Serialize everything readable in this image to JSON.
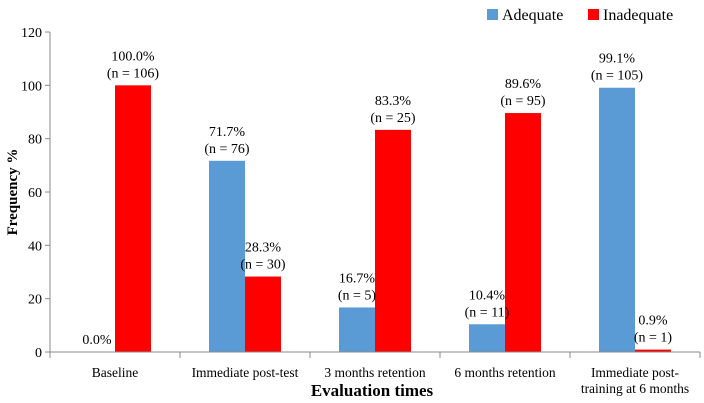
{
  "chart_data": {
    "type": "bar",
    "xlabel": "Evaluation times",
    "ylabel": "Frequency %",
    "ylim": [
      0,
      120
    ],
    "yticks": [
      0,
      20,
      40,
      60,
      80,
      100,
      120
    ],
    "grid": false,
    "legend_position": "top-right",
    "categories": [
      [
        "Baseline"
      ],
      [
        "Immediate post-test"
      ],
      [
        "3 months retention"
      ],
      [
        "6 months retention"
      ],
      [
        "Immediate post-",
        "training at 6 months"
      ]
    ],
    "series": [
      {
        "name": "Adequate",
        "color": "#5B9BD5",
        "values": [
          0.0,
          71.7,
          16.7,
          10.4,
          99.1
        ],
        "labels": [
          [
            "0.0%"
          ],
          [
            "71.7%",
            "(n = 76)"
          ],
          [
            "16.7%",
            "(n = 5)"
          ],
          [
            "10.4%",
            "(n = 11)"
          ],
          [
            "99.1%",
            "(n = 105)"
          ]
        ]
      },
      {
        "name": "Inadequate",
        "color": "#FF0000",
        "values": [
          100.0,
          28.3,
          83.3,
          89.6,
          0.9
        ],
        "labels": [
          [
            "100.0%",
            "(n = 106)"
          ],
          [
            "28.3%",
            "(n = 30)"
          ],
          [
            "83.3%",
            "(n = 25)"
          ],
          [
            "89.6%",
            "(n = 95)"
          ],
          [
            "0.9%",
            "(n = 1)"
          ]
        ]
      }
    ]
  }
}
